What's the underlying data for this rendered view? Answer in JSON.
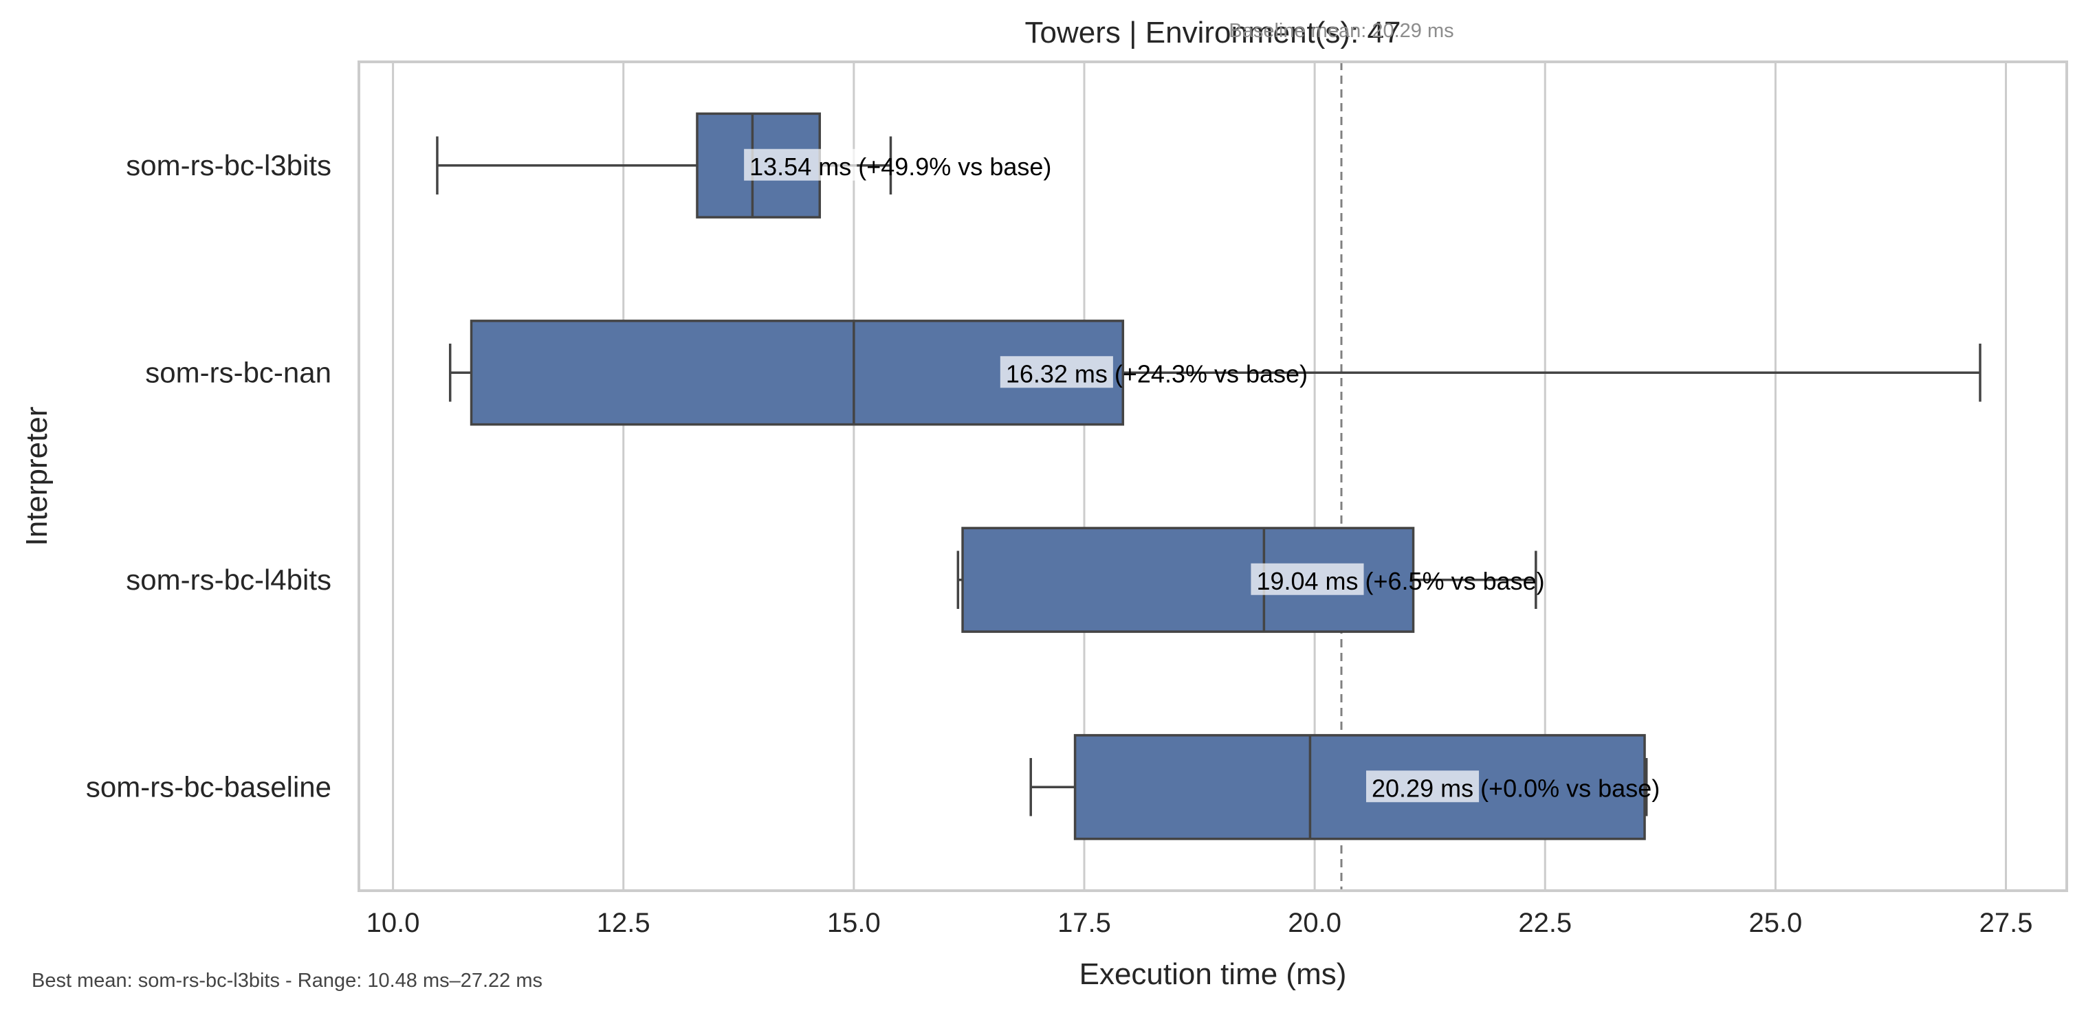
{
  "chart_data": {
    "type": "box",
    "title": "Towers | Environment(s): 47",
    "xlabel": "Execution time (ms)",
    "ylabel": "Interpreter",
    "xlim": [
      9.63,
      28.16
    ],
    "xticks": [
      10.0,
      12.5,
      15.0,
      17.5,
      20.0,
      22.5,
      25.0,
      27.5
    ],
    "xtick_labels": [
      "10.0",
      "12.5",
      "15.0",
      "17.5",
      "20.0",
      "22.5",
      "25.0",
      "27.5"
    ],
    "grid": "vertical",
    "orientation": "horizontal",
    "box_color": "#5875a4",
    "baseline_mean": 20.29,
    "baseline_label": "Baseline mean: 20.29 ms",
    "categories": [
      "som-rs-bc-l3bits",
      "som-rs-bc-nan",
      "som-rs-bc-l4bits",
      "som-rs-bc-baseline"
    ],
    "boxes": [
      {
        "name": "som-rs-bc-l3bits",
        "whisker_low": 10.48,
        "q1": 13.3,
        "median": 13.9,
        "q3": 14.63,
        "whisker_high": 15.4,
        "mean": 13.54,
        "annotation": "13.54 ms  (+49.9% vs base)"
      },
      {
        "name": "som-rs-bc-nan",
        "whisker_low": 10.62,
        "q1": 10.85,
        "median": 15.0,
        "q3": 17.92,
        "whisker_high": 27.22,
        "mean": 16.32,
        "annotation": "16.32 ms  (+24.3% vs base)"
      },
      {
        "name": "som-rs-bc-l4bits",
        "whisker_low": 16.13,
        "q1": 16.18,
        "median": 19.45,
        "q3": 21.07,
        "whisker_high": 22.4,
        "mean": 19.04,
        "annotation": "19.04 ms  (+6.5% vs base)"
      },
      {
        "name": "som-rs-bc-baseline",
        "whisker_low": 16.92,
        "q1": 17.4,
        "median": 19.95,
        "q3": 23.58,
        "whisker_high": 23.6,
        "mean": 20.29,
        "annotation": "20.29 ms  (+0.0% vs base)"
      }
    ],
    "footnote": "Best mean: som-rs-bc-l3bits - Range: 10.48 ms–27.22 ms"
  }
}
